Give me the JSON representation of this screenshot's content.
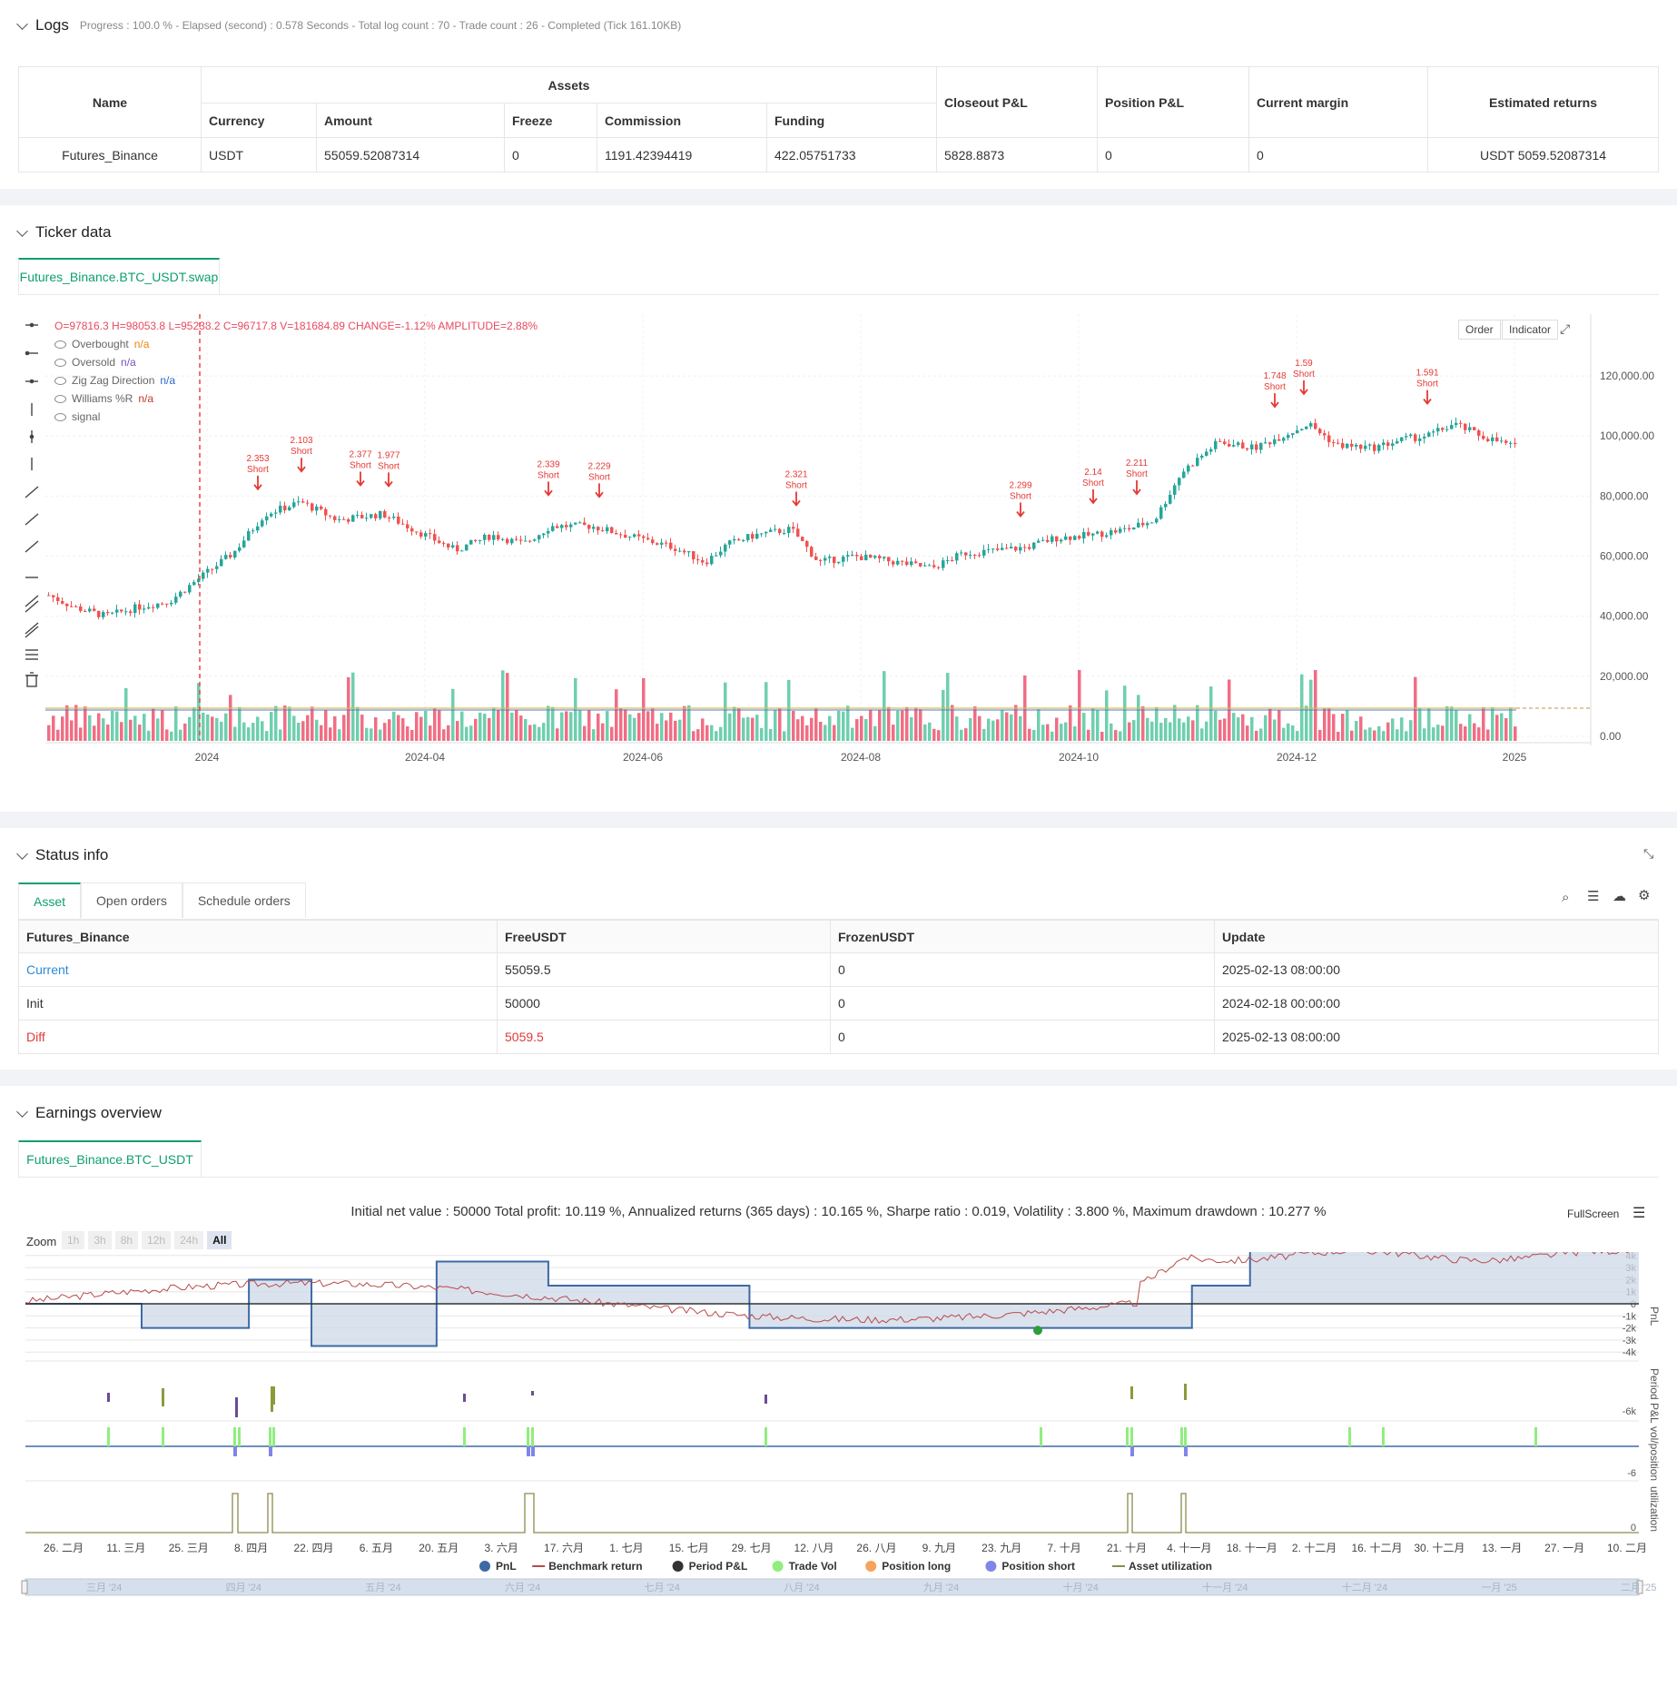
{
  "logs": {
    "title": "Logs",
    "progress": "Progress : 100.0 % - Elapsed (second) : 0.578  Seconds - Total log count : 70 - Trade count : 26 - Completed (Tick 161.10KB)",
    "table": {
      "name_header": "Name",
      "assets_header": "Assets",
      "sub_headers": [
        "Currency",
        "Amount",
        "Freeze",
        "Commission",
        "Funding"
      ],
      "right_headers": [
        "Closeout P&L",
        "Position P&L",
        "Current margin",
        "Estimated returns"
      ],
      "row": [
        "Futures_Binance",
        "USDT",
        "55059.52087314",
        "0",
        "1191.42394419",
        "422.05751733",
        "5828.8873",
        "0",
        "0",
        "USDT 5059.52087314"
      ]
    }
  },
  "ticker": {
    "title": "Ticker data",
    "tab": "Futures_Binance.BTC_USDT.swap",
    "ohlc": "O=97816.3 H=98053.8 L=95238.2 C=96717.8 V=181684.89 CHANGE=-1.12% AMPLITUDE=2.88%",
    "legend": [
      {
        "label": "Overbought",
        "value": "n/a"
      },
      {
        "label": "Oversold",
        "value": "n/a"
      },
      {
        "label": "Zig Zag Direction",
        "value": "n/a"
      },
      {
        "label": "Williams %R",
        "value": "n/a"
      },
      {
        "label": "signal",
        "value": ""
      }
    ],
    "buttons": [
      "Order",
      "Indicator"
    ],
    "y_ticks": [
      "120,000.00",
      "100,000.00",
      "80,000.00",
      "60,000.00",
      "40,000.00",
      "20,000.00",
      "0.00"
    ],
    "x_ticks": [
      "2024",
      "2024-04",
      "2024-06",
      "2024-08",
      "2024-10",
      "2024-12",
      "2025"
    ],
    "signals": [
      {
        "value": "2.353",
        "text": "Short"
      },
      {
        "value": "2.103",
        "text": "Short"
      },
      {
        "value": "2.377",
        "text": "Short"
      },
      {
        "value": "1.977",
        "text": "Short"
      },
      {
        "value": "2.339",
        "text": "Short"
      },
      {
        "value": "2.229",
        "text": "Short"
      },
      {
        "value": "2.321",
        "text": "Short"
      },
      {
        "value": "2.299",
        "text": "Short"
      },
      {
        "value": "2.14",
        "text": "Short"
      },
      {
        "value": "2.211",
        "text": "Short"
      },
      {
        "value": "1.748",
        "text": "Short"
      },
      {
        "value": "1.59",
        "text": "Short"
      },
      {
        "value": "1.591",
        "text": "Short"
      }
    ]
  },
  "status": {
    "title": "Status info",
    "tabs": [
      "Asset",
      "Open orders",
      "Schedule orders"
    ],
    "headers": [
      "Futures_Binance",
      "FreeUSDT",
      "FrozenUSDT",
      "Update"
    ],
    "rows": [
      [
        "Current",
        "55059.5",
        "0",
        "2025-02-13 08:00:00"
      ],
      [
        "Init",
        "50000",
        "0",
        "2024-02-18 00:00:00"
      ],
      [
        "Diff",
        "5059.5",
        "0",
        "2025-02-13 08:00:00"
      ]
    ]
  },
  "earnings": {
    "title": "Earnings overview",
    "tab": "Futures_Binance.BTC_USDT",
    "summary": "Initial net value : 50000  Total profit: 10.119 %, Annualized returns (365 days) : 10.165 %, Sharpe ratio : 0.019, Volatility : 3.800 %, Maximum drawdown : 10.277 %",
    "fullscreen": "FullScreen",
    "zoom_label": "Zoom",
    "zoom_buttons": [
      "1h",
      "3h",
      "8h",
      "12h",
      "24h",
      "All"
    ],
    "pnl_ticks": [
      "5k",
      "4k",
      "3k",
      "2k",
      "1k",
      "0",
      "-1k",
      "-2k",
      "-3k",
      "-4k"
    ],
    "axis_labels": [
      "PnL",
      "Period P&L",
      "vol/position",
      "utilization"
    ],
    "small_ticks": [
      "-6k",
      "-6",
      "0"
    ],
    "x_ticks": [
      "26. 二月",
      "11. 三月",
      "25. 三月",
      "8. 四月",
      "22. 四月",
      "6. 五月",
      "20. 五月",
      "3. 六月",
      "17. 六月",
      "1. 七月",
      "15. 七月",
      "29. 七月",
      "12. 八月",
      "26. 八月",
      "9. 九月",
      "23. 九月",
      "7. 十月",
      "21. 十月",
      "4. 十一月",
      "18. 十一月",
      "2. 十二月",
      "16. 十二月",
      "30. 十二月",
      "13. 一月",
      "27. 一月",
      "10. 二月"
    ],
    "legend": [
      {
        "label": "PnL",
        "color": "#3d6aa5"
      },
      {
        "label": "Benchmark return",
        "color": "#b94a4a"
      },
      {
        "label": "Period P&L",
        "color": "#333333"
      },
      {
        "label": "Trade Vol",
        "color": "#90ee7e"
      },
      {
        "label": "Position long",
        "color": "#f7a35c"
      },
      {
        "label": "Position short",
        "color": "#8085e9"
      },
      {
        "label": "Asset utilization",
        "color": "#8d8a4e"
      }
    ],
    "navigator_ticks": [
      "三月 '24",
      "四月 '24",
      "五月 '24",
      "六月 '24",
      "七月 '24",
      "八月 '24",
      "九月 '24",
      "十月 '24",
      "十一月 '24",
      "十二月 '24",
      "一月 '25",
      "二月 '25"
    ]
  },
  "chart_data": {
    "type": "line",
    "title": "",
    "x": [
      "2024-02-18",
      "2024-03-15",
      "2024-04-08",
      "2024-04-22",
      "2024-05-20",
      "2024-06-14",
      "2024-07-29",
      "2024-09-25",
      "2024-10-20",
      "2024-11-05",
      "2024-11-18",
      "2025-02-13"
    ],
    "series": [
      {
        "name": "PnL",
        "values": [
          0,
          -2000,
          2000,
          -3500,
          3500,
          1500,
          -2000,
          -2000,
          -2000,
          1500,
          5000,
          5000
        ]
      }
    ],
    "xlabel": "",
    "ylabel": "PnL",
    "ylim": [
      -4500,
      5500
    ]
  }
}
